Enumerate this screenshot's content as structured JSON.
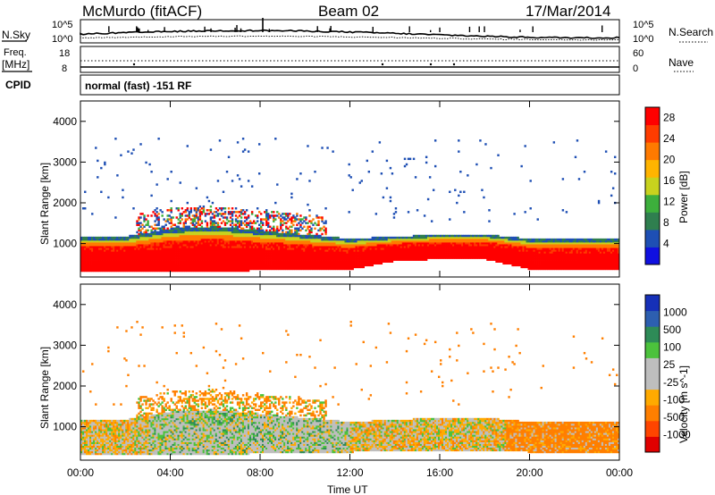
{
  "header": {
    "station": "McMurdo (fitACF)",
    "beam": "Beam 02",
    "date": "17/Mar/2014"
  },
  "noise_panel": {
    "left_label": "N.Sky",
    "left_ticks": [
      "10^5",
      "10^0"
    ],
    "right_label": "N.Search",
    "right_ticks": [
      "10^5",
      "10^0"
    ]
  },
  "freq_panel": {
    "left_label_1": "Freq.",
    "left_label_2": "[MHz]",
    "left_ticks": [
      "18",
      "8"
    ],
    "right_label": "Nave",
    "right_ticks": [
      "60",
      "0"
    ]
  },
  "cpid": {
    "label": "CPID",
    "value": "normal (fast) -151 RF"
  },
  "colors": {
    "power": [
      "#1010e0",
      "#1e4fb4",
      "#2f7f4f",
      "#3daf3c",
      "#c8d21e",
      "#ffb400",
      "#ff7a00",
      "#ff3c00",
      "#ff0000"
    ],
    "velocity": [
      "#1630b8",
      "#2d5fb0",
      "#2e8b57",
      "#4cc23c",
      "#bebebe",
      "#bebebe",
      "#ffaa00",
      "#ff7f00",
      "#ff4500",
      "#e00000"
    ],
    "ground_scatter": "#bebebe"
  },
  "chart_data": [
    {
      "type": "heatmap",
      "name": "power",
      "xlabel": "",
      "ylabel": "Slant Range [km]",
      "x_ticks": [
        "00:00",
        "04:00",
        "08:00",
        "12:00",
        "16:00",
        "20:00",
        "00:00"
      ],
      "xlim_hours": [
        0,
        24
      ],
      "y_ticks": [
        1000,
        2000,
        3000,
        4000
      ],
      "ylim": [
        180,
        4500
      ],
      "colorbar_label": "Power [dB]",
      "colorbar_ticks": [
        4,
        8,
        12,
        16,
        20,
        24,
        28
      ],
      "colorbar_range": [
        0,
        30
      ],
      "boundary_vs_time": {
        "hours": [
          0,
          2,
          4,
          6,
          8,
          10,
          12,
          14,
          16,
          18,
          20,
          22,
          24
        ],
        "lower_edge_km": [
          300,
          300,
          300,
          300,
          320,
          330,
          340,
          550,
          600,
          600,
          350,
          350,
          350
        ],
        "upper_edge_km": [
          1150,
          1150,
          1350,
          1400,
          1300,
          1200,
          1100,
          1150,
          1200,
          1200,
          1100,
          1100,
          1100
        ]
      }
    },
    {
      "type": "heatmap",
      "name": "velocity",
      "xlabel": "Time UT",
      "ylabel": "Slant Range [km]",
      "x_ticks": [
        "00:00",
        "04:00",
        "08:00",
        "12:00",
        "16:00",
        "20:00",
        "00:00"
      ],
      "xlim_hours": [
        0,
        24
      ],
      "y_ticks": [
        1000,
        2000,
        3000,
        4000
      ],
      "ylim": [
        180,
        4500
      ],
      "colorbar_label": "Velocity [m s^-1]",
      "colorbar_ticks": [
        "1000",
        "500",
        "100",
        "25",
        "-25",
        "-100",
        "-500",
        "-1000"
      ]
    }
  ]
}
